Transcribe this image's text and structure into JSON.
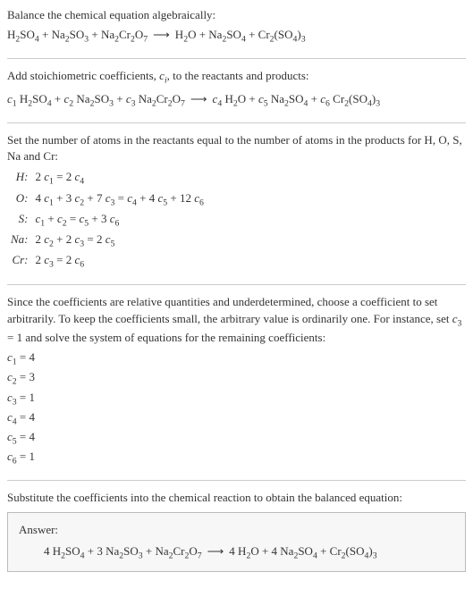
{
  "intro": {
    "prompt": "Balance the chemical equation algebraically:",
    "equation_left": "H₂SO₄ + Na₂SO₃ + Na₂Cr₂O₇",
    "equation_right": "H₂O + Na₂SO₄ + Cr₂(SO₄)₃"
  },
  "step1": {
    "text_before": "Add stoichiometric coefficients, ",
    "ci": "cᵢ",
    "text_after": ", to the reactants and products:",
    "equation_left": "c₁ H₂SO₄ + c₂ Na₂SO₃ + c₃ Na₂Cr₂O₇",
    "equation_right": "c₄ H₂O + c₅ Na₂SO₄ + c₆ Cr₂(SO₄)₃"
  },
  "step2": {
    "text": "Set the number of atoms in the reactants equal to the number of atoms in the products for H, O, S, Na and Cr:",
    "rows": [
      {
        "el": "H:",
        "eq": "2 c₁ = 2 c₄"
      },
      {
        "el": "O:",
        "eq": "4 c₁ + 3 c₂ + 7 c₃ = c₄ + 4 c₅ + 12 c₆"
      },
      {
        "el": "S:",
        "eq": "c₁ + c₂ = c₅ + 3 c₆"
      },
      {
        "el": "Na:",
        "eq": "2 c₂ + 2 c₃ = 2 c₅"
      },
      {
        "el": "Cr:",
        "eq": "2 c₃ = 2 c₆"
      }
    ]
  },
  "step3": {
    "text": "Since the coefficients are relative quantities and underdetermined, choose a coefficient to set arbitrarily. To keep the coefficients small, the arbitrary value is ordinarily one. For instance, set c₃ = 1 and solve the system of equations for the remaining coefficients:",
    "coefs": [
      "c₁ = 4",
      "c₂ = 3",
      "c₃ = 1",
      "c₄ = 4",
      "c₅ = 4",
      "c₆ = 1"
    ]
  },
  "step4": {
    "text": "Substitute the coefficients into the chemical reaction to obtain the balanced equation:"
  },
  "answer": {
    "label": "Answer:",
    "equation_left": "4 H₂SO₄ + 3 Na₂SO₃ + Na₂Cr₂O₇",
    "equation_right": "4 H₂O + 4 Na₂SO₄ + Cr₂(SO₄)₃"
  },
  "arrow": "⟶"
}
